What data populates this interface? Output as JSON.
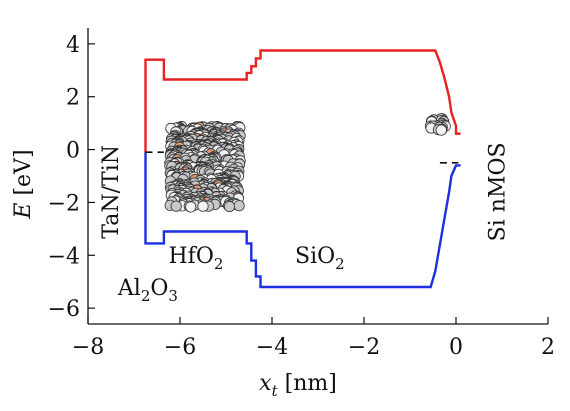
{
  "chart_data": {
    "type": "line",
    "xlabel_var": "x",
    "xlabel_sub": "t",
    "xlabel_unit": "[nm]",
    "ylabel_var": "E",
    "ylabel_unit": "[eV]",
    "xlim": [
      -8,
      2
    ],
    "ylim": [
      -6.6,
      4.6
    ],
    "x_ticks": [
      -8,
      -6,
      -4,
      -2,
      0,
      2
    ],
    "y_ticks": [
      -6,
      -4,
      -2,
      0,
      2,
      4
    ],
    "x_tick_labels": [
      "−8",
      "−6",
      "−4",
      "−2",
      "0",
      "2"
    ],
    "y_tick_labels": [
      "−6",
      "−4",
      "−2",
      "0",
      "2",
      "4"
    ],
    "grid": false,
    "series": [
      {
        "color": "#e8211f",
        "x": [
          -6.75,
          -6.75,
          -6.35,
          -6.35,
          -4.55,
          -4.55,
          -4.45,
          -4.45,
          -4.35,
          -4.35,
          -4.25,
          -4.25,
          -0.45,
          -0.35,
          -0.25,
          -0.15,
          -0.1,
          0.0,
          0.0,
          0.1
        ],
        "y": [
          -0.1,
          3.4,
          3.4,
          2.65,
          2.65,
          2.9,
          2.9,
          3.15,
          3.15,
          3.45,
          3.45,
          3.75,
          3.75,
          3.3,
          2.7,
          2.0,
          1.4,
          0.9,
          0.6,
          0.6
        ]
      },
      {
        "color": "#1c2fe0",
        "x": [
          -6.75,
          -6.75,
          -6.35,
          -6.35,
          -4.55,
          -4.55,
          -4.45,
          -4.45,
          -4.35,
          -4.35,
          -4.25,
          -4.25,
          -0.55,
          -0.45,
          -0.35,
          -0.25,
          -0.15,
          -0.1,
          0.0,
          0.1
        ],
        "y": [
          -0.1,
          -3.55,
          -3.55,
          -3.1,
          -3.1,
          -3.55,
          -3.55,
          -4.2,
          -4.2,
          -4.8,
          -4.8,
          -5.2,
          -5.2,
          -4.6,
          -3.6,
          -2.6,
          -1.6,
          -1.0,
          -0.6,
          -0.6
        ]
      },
      {
        "color": "#111111",
        "dashed": true,
        "x": [
          -6.75,
          -6.35
        ],
        "y": [
          -0.1,
          -0.1
        ]
      },
      {
        "color": "#111111",
        "dashed": true,
        "x": [
          -0.35,
          0.05
        ],
        "y": [
          -0.5,
          -0.5
        ]
      }
    ],
    "atom_clusters": [
      {
        "color": "#c8c8c8",
        "x_range": [
          -6.35,
          -4.55
        ],
        "y_range": [
          1.1,
          -2.4
        ]
      },
      {
        "color": "#c8c8c8",
        "x_range": [
          -0.7,
          -0.1
        ],
        "y_range": [
          1.4,
          0.5
        ]
      }
    ],
    "annotations": [
      {
        "id": "gate",
        "text": "TaN/TiN",
        "x": -7.35,
        "y": -1.6,
        "rotate": -90
      },
      {
        "id": "hfo2",
        "base": "HfO",
        "sub": "2",
        "x": -6.25,
        "y": -4.3
      },
      {
        "id": "sio2",
        "base": "SiO",
        "sub": "2",
        "x": -3.5,
        "y": -4.3
      },
      {
        "id": "al2o3",
        "parts": [
          "Al",
          "2",
          "O",
          "3"
        ],
        "x": -7.35,
        "y": -5.5
      },
      {
        "id": "si",
        "text": "Si nMOS",
        "x": 1.05,
        "y": -1.6,
        "rotate": -90
      }
    ]
  }
}
